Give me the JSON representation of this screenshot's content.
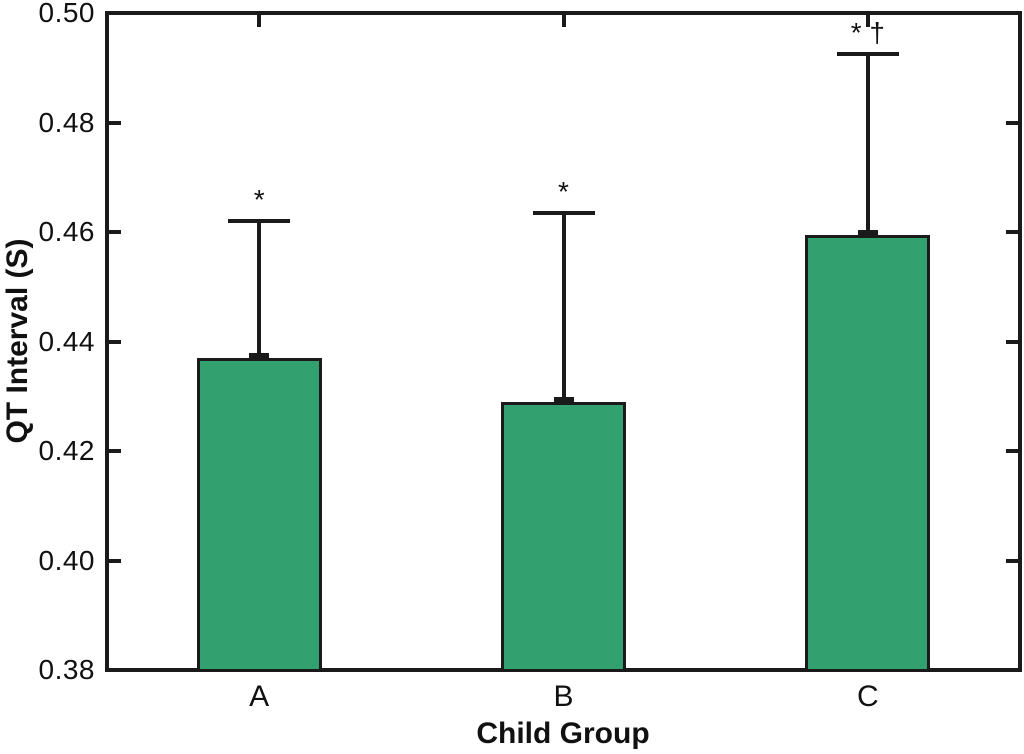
{
  "figure": {
    "background": "#FFFFFF"
  },
  "chart_data": {
    "type": "bar",
    "title": "",
    "xlabel": "Child Group",
    "ylabel": "QT Interval (S)",
    "categories": [
      "A",
      "B",
      "C"
    ],
    "values": [
      0.437,
      0.429,
      0.4595
    ],
    "error_upper": [
      0.025,
      0.0345,
      0.033
    ],
    "error_bar_tops": [
      0.462,
      0.4635,
      0.4925
    ],
    "annotations": [
      "*",
      "*",
      "* †"
    ],
    "ylim": [
      0.38,
      0.5
    ],
    "yticks": [
      0.38,
      0.4,
      0.42,
      0.44,
      0.46,
      0.48,
      0.5
    ],
    "ytick_labels": [
      "0.38",
      "0.40",
      "0.42",
      "0.44",
      "0.46",
      "0.48",
      "0.50"
    ],
    "grid": false,
    "legend": false,
    "bar_color": "#33A06F",
    "bar_edge_color": "#1A1A1A",
    "axis_color": "#1A1A1A",
    "background": "#FFFFFF"
  }
}
